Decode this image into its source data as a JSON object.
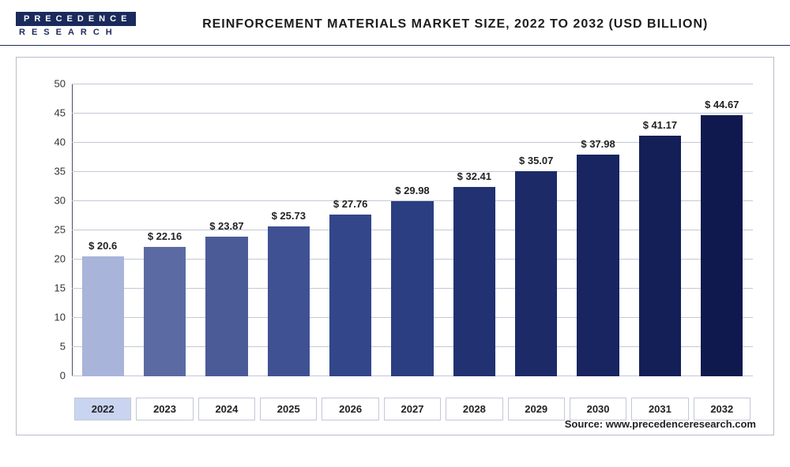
{
  "logo": {
    "line1": "PRECEDENCE",
    "line2": "RESEARCH"
  },
  "title": "REINFORCEMENT MATERIALS MARKET SIZE, 2022 TO 2032 (USD BILLION)",
  "source": "Source: www.precedenceresearch.com",
  "chart": {
    "type": "bar",
    "ylim": [
      0,
      50
    ],
    "ytick_step": 5,
    "yticks": [
      0,
      5,
      10,
      15,
      20,
      25,
      30,
      35,
      40,
      45,
      50
    ],
    "grid_color": "#c4c8d6",
    "background_color": "#ffffff",
    "axis_color": "#4b4f63",
    "label_prefix": "$ ",
    "label_fontsize": 13,
    "title_fontsize": 16,
    "bar_width": 0.68,
    "categories": [
      "2022",
      "2023",
      "2024",
      "2025",
      "2026",
      "2027",
      "2028",
      "2029",
      "2030",
      "2031",
      "2032"
    ],
    "values": [
      20.6,
      22.16,
      23.87,
      25.73,
      27.76,
      29.98,
      32.41,
      35.07,
      37.98,
      41.17,
      44.67
    ],
    "display_values": [
      "20.6",
      "22.16",
      "23.87",
      "25.73",
      "27.76",
      "29.98",
      "32.41",
      "35.07",
      "37.98",
      "41.17",
      "44.67"
    ],
    "bar_colors": [
      "#a8b4d9",
      "#5b6aa2",
      "#4b5b98",
      "#3f5192",
      "#33468a",
      "#2b3e82",
      "#213171",
      "#1c2b68",
      "#182561",
      "#141f57",
      "#10194d"
    ],
    "highlight_index": 0
  }
}
